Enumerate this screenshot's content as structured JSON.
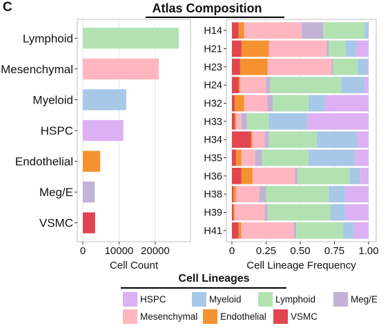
{
  "panel_label": "C",
  "title": "Atlas Composition",
  "colors": {
    "HSPC": "#dcb0f2",
    "Myeloid": "#a8c8e8",
    "Lymphoid": "#b2e2b2",
    "Meg/E": "#c2b3d6",
    "Mesenchymal": "#ffb6c1",
    "Endothelial": "#f5922f",
    "VSMC": "#e04550"
  },
  "legend": {
    "title": "Cell Lineages",
    "items": [
      "HSPC",
      "Myeloid",
      "Lymphoid",
      "Meg/E",
      "Mesenchymal",
      "Endothelial",
      "VSMC"
    ]
  },
  "chart_data": [
    {
      "type": "bar",
      "orientation": "horizontal",
      "categories": [
        "Lymphoid",
        "Mesenchymal",
        "Myeloid",
        "HSPC",
        "Endothelial",
        "Meg/E",
        "VSMC"
      ],
      "values": [
        26500,
        21000,
        12000,
        11200,
        4800,
        3300,
        3400
      ],
      "xlabel": "Cell Count",
      "ylabel": "",
      "xlim": [
        0,
        28000
      ],
      "xticks": [
        0,
        10000,
        20000
      ],
      "xtick_labels": [
        "0",
        "10000",
        "20000"
      ],
      "grid": true
    },
    {
      "type": "bar",
      "orientation": "horizontal",
      "stacked": true,
      "categories": [
        "H14",
        "H21",
        "H23",
        "H24",
        "H32",
        "H33",
        "H34",
        "H35",
        "H36",
        "H38",
        "H39",
        "H41"
      ],
      "xlabel": "Cell Lineage Frequency",
      "ylabel": "",
      "xlim": [
        0,
        1
      ],
      "xticks": [
        0,
        0.25,
        0.5,
        0.75,
        1
      ],
      "xtick_labels": [
        "0",
        "0.25",
        "0.50",
        "0.75",
        "1.00"
      ],
      "grid": true,
      "series": [
        {
          "name": "VSMC",
          "values": [
            0.05,
            0.07,
            0.06,
            0.05,
            0.02,
            0.02,
            0.14,
            0.03,
            0.07,
            0.01,
            0.01,
            0.05
          ]
        },
        {
          "name": "Endothelial",
          "values": [
            0.04,
            0.2,
            0.2,
            0.01,
            0.07,
            0.01,
            0.01,
            0.04,
            0.08,
            0.02,
            0.01,
            0.02
          ]
        },
        {
          "name": "Mesenchymal",
          "values": [
            0.43,
            0.42,
            0.47,
            0.19,
            0.17,
            0.04,
            0.09,
            0.1,
            0.31,
            0.17,
            0.22,
            0.39
          ]
        },
        {
          "name": "Meg/E",
          "values": [
            0.16,
            0.02,
            0.01,
            0.03,
            0.04,
            0.04,
            0.03,
            0.05,
            0.02,
            0.05,
            0.02,
            0.02
          ]
        },
        {
          "name": "Lymphoid",
          "values": [
            0.31,
            0.12,
            0.18,
            0.52,
            0.26,
            0.16,
            0.35,
            0.34,
            0.38,
            0.46,
            0.46,
            0.35
          ]
        },
        {
          "name": "Myeloid",
          "values": [
            0.03,
            0.08,
            0.07,
            0.17,
            0.12,
            0.28,
            0.3,
            0.34,
            0.08,
            0.12,
            0.11,
            0.08
          ]
        },
        {
          "name": "HSPC",
          "values": [
            0.0,
            0.09,
            0.01,
            0.03,
            0.32,
            0.45,
            0.08,
            0.1,
            0.06,
            0.17,
            0.17,
            0.11
          ]
        }
      ]
    }
  ]
}
